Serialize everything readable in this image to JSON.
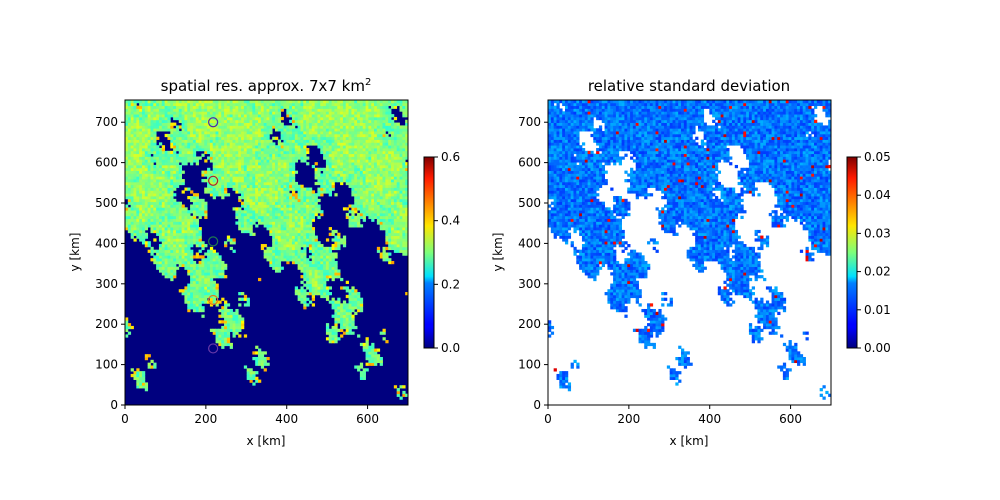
{
  "chart_data": [
    {
      "type": "heatmap",
      "title": "spatial res. approx. 7x7 km",
      "title_superscript": "2",
      "xlabel": "x [km]",
      "ylabel": "y [km]",
      "xlim": [
        0,
        700
      ],
      "ylim": [
        0,
        755
      ],
      "xticks": [
        "0",
        "200",
        "400",
        "600"
      ],
      "yticks": [
        "0",
        "100",
        "200",
        "300",
        "400",
        "500",
        "600",
        "700"
      ],
      "colorbar": {
        "colormap": "jet",
        "range": [
          0,
          0.6
        ],
        "ticks": [
          "0.0",
          "0.2",
          "0.4",
          "0.6"
        ]
      },
      "masked_color": "#00007f",
      "markers": [
        {
          "x": 218,
          "y": 700,
          "color": "#4b2aa8"
        },
        {
          "x": 218,
          "y": 555,
          "color": "#b0202f"
        },
        {
          "x": 218,
          "y": 405,
          "color": "#1e7a4e"
        },
        {
          "x": 218,
          "y": 260,
          "color": "#e07a20"
        },
        {
          "x": 218,
          "y": 140,
          "color": "#6a3aa8"
        }
      ]
    },
    {
      "type": "heatmap",
      "title": "relative standard deviation",
      "xlabel": "x [km]",
      "ylabel": "y [km]",
      "xlim": [
        0,
        700
      ],
      "ylim": [
        0,
        755
      ],
      "xticks": [
        "0",
        "200",
        "400",
        "600"
      ],
      "yticks": [
        "0",
        "100",
        "200",
        "300",
        "400",
        "500",
        "600",
        "700"
      ],
      "colorbar": {
        "colormap": "jet",
        "range": [
          0,
          0.05
        ],
        "ticks": [
          "0.00",
          "0.01",
          "0.02",
          "0.03",
          "0.04",
          "0.05"
        ]
      },
      "masked_color": "#ffffff"
    }
  ]
}
